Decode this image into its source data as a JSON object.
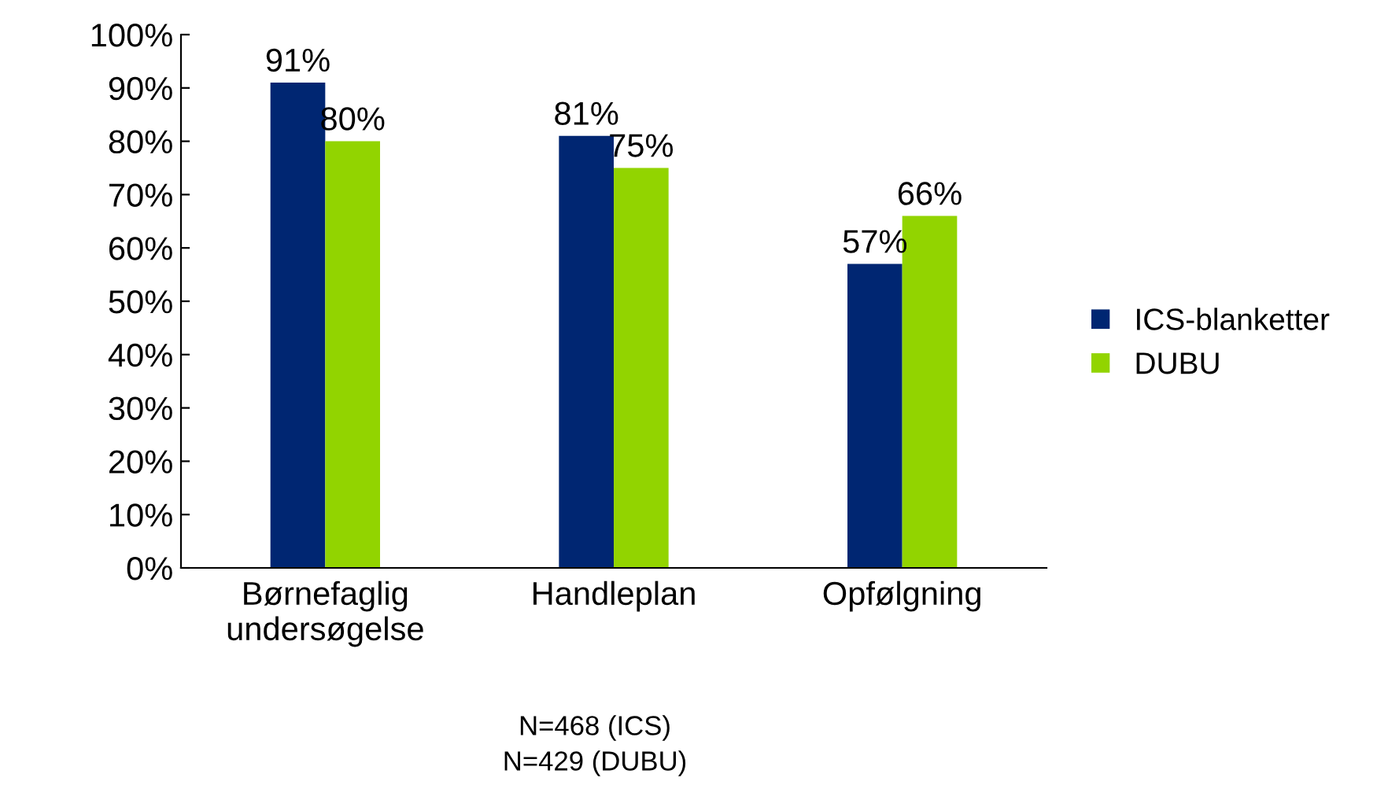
{
  "chart_data": {
    "type": "bar",
    "categories": [
      "Børnefaglig\nundersøgelse",
      "Handleplan",
      "Opfølgning"
    ],
    "series": [
      {
        "name": "ICS-blanketter",
        "color": "#002672",
        "values": [
          91,
          81,
          57
        ]
      },
      {
        "name": "DUBU",
        "color": "#92d400",
        "values": [
          80,
          75,
          66
        ]
      }
    ],
    "ylim": [
      0,
      100
    ],
    "yticks": [
      {
        "value": 0,
        "label": "0%"
      },
      {
        "value": 10,
        "label": "10%"
      },
      {
        "value": 20,
        "label": "20%"
      },
      {
        "value": 30,
        "label": "30%"
      },
      {
        "value": 40,
        "label": "40%"
      },
      {
        "value": 50,
        "label": "50%"
      },
      {
        "value": 60,
        "label": "60%"
      },
      {
        "value": 70,
        "label": "70%"
      },
      {
        "value": 80,
        "label": "80%"
      },
      {
        "value": 90,
        "label": "90%"
      },
      {
        "value": 100,
        "label": "100%"
      }
    ],
    "value_labels": [
      [
        "91%",
        "81%",
        "57%"
      ],
      [
        "80%",
        "75%",
        "66%"
      ]
    ],
    "annotations": [
      "N=468 (ICS)\nN=429 (DUBU)"
    ],
    "legend": "right",
    "grid": false
  }
}
